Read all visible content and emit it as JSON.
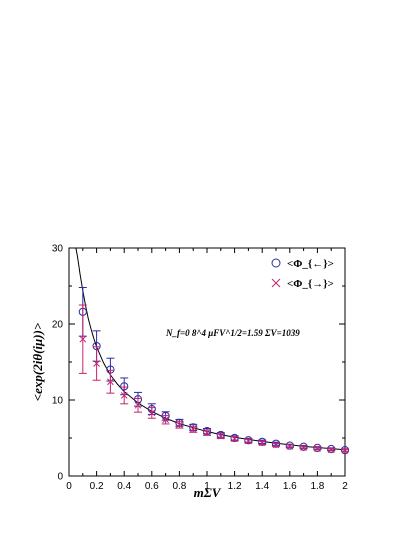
{
  "chart_data": {
    "type": "scatter",
    "title": "",
    "xlabel": "mΣV",
    "ylabel": "<exp(2iθ(iμ))>",
    "xlim": [
      0,
      2
    ],
    "ylim": [
      0,
      30
    ],
    "x_ticks": [
      "0",
      "0.2",
      "0.4",
      "0.6",
      "0.8",
      "1",
      "1.2",
      "1.4",
      "1.6",
      "1.8",
      "2"
    ],
    "y_ticks": [
      "0",
      "10",
      "20",
      "30"
    ],
    "grid": false,
    "legend_position": "top-right",
    "annotation": "N_f=0  8^4  μFV^1/2=1.59  ΣV=1039",
    "series": [
      {
        "name": "<Φ_{←}>",
        "marker": "circle",
        "color": "#2a2aa8",
        "x": [
          0.1,
          0.2,
          0.3,
          0.4,
          0.5,
          0.6,
          0.7,
          0.8,
          0.9,
          1.0,
          1.1,
          1.2,
          1.3,
          1.4,
          1.5,
          1.6,
          1.7,
          1.8,
          1.9,
          2.0
        ],
        "y": [
          21.6,
          17.1,
          14.0,
          11.8,
          10.1,
          8.8,
          7.9,
          7.0,
          6.4,
          5.9,
          5.4,
          5.0,
          4.7,
          4.5,
          4.25,
          4.0,
          3.85,
          3.7,
          3.55,
          3.4
        ],
        "err": [
          3.2,
          2.0,
          1.5,
          1.1,
          0.9,
          0.7,
          0.55,
          0.45,
          0.4,
          0.35,
          0.3,
          0.28,
          0.25,
          0.22,
          0.2,
          0.18,
          0.17,
          0.16,
          0.15,
          0.14
        ]
      },
      {
        "name": "<Φ_{→}>",
        "marker": "cross",
        "color": "#c8246b",
        "x": [
          0.1,
          0.2,
          0.3,
          0.4,
          0.5,
          0.6,
          0.7,
          0.8,
          0.9,
          1.0,
          1.1,
          1.2,
          1.3,
          1.4,
          1.5,
          1.6,
          1.7,
          1.8,
          1.9,
          2.0
        ],
        "y": [
          18.0,
          14.8,
          12.4,
          10.6,
          9.3,
          8.3,
          7.4,
          6.75,
          6.15,
          5.7,
          5.25,
          4.9,
          4.6,
          4.35,
          4.1,
          3.9,
          3.75,
          3.6,
          3.45,
          3.35
        ],
        "err": [
          4.5,
          2.2,
          1.5,
          1.1,
          0.9,
          0.7,
          0.55,
          0.45,
          0.4,
          0.35,
          0.3,
          0.28,
          0.25,
          0.22,
          0.2,
          0.18,
          0.17,
          0.16,
          0.15,
          0.14
        ]
      }
    ],
    "curve": {
      "x": [
        0.05,
        0.06,
        0.07,
        0.08,
        0.09,
        0.1,
        0.12,
        0.14,
        0.16,
        0.18,
        0.2,
        0.25,
        0.3,
        0.35,
        0.4,
        0.5,
        0.6,
        0.7,
        0.8,
        0.9,
        1.0,
        1.1,
        1.2,
        1.3,
        1.4,
        1.5,
        1.6,
        1.7,
        1.8,
        1.9,
        2.0
      ],
      "y": [
        30.0,
        29.0,
        27.8,
        26.6,
        25.5,
        24.4,
        22.4,
        20.7,
        19.3,
        18.1,
        17.0,
        14.9,
        13.3,
        12.1,
        11.1,
        9.6,
        8.5,
        7.6,
        6.9,
        6.35,
        5.85,
        5.45,
        5.1,
        4.8,
        4.55,
        4.3,
        4.1,
        3.9,
        3.75,
        3.6,
        3.45
      ]
    }
  }
}
